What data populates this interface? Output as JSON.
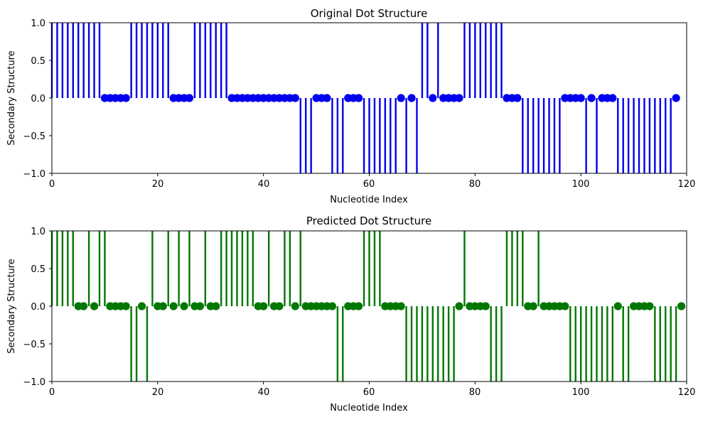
{
  "chart_data": [
    {
      "type": "stem",
      "title": "Original Dot Structure",
      "xlabel": "Nucleotide Index",
      "ylabel": "Secondary Structure",
      "xlim": [
        0,
        120
      ],
      "ylim": [
        -1,
        1
      ],
      "xticks": [
        "0",
        "20",
        "40",
        "60",
        "80",
        "100",
        "120"
      ],
      "yticks": [
        "1.0",
        "0.5",
        "0.0",
        "−0.5",
        "−1.0"
      ],
      "color": "#0000ee",
      "grid": false,
      "values": [
        1,
        1,
        1,
        1,
        1,
        1,
        1,
        1,
        1,
        1,
        0,
        0,
        0,
        0,
        0,
        1,
        1,
        1,
        1,
        1,
        1,
        1,
        1,
        0,
        0,
        0,
        0,
        1,
        1,
        1,
        1,
        1,
        1,
        1,
        0,
        0,
        0,
        0,
        0,
        0,
        0,
        0,
        0,
        0,
        0,
        0,
        0,
        -1,
        -1,
        -1,
        0,
        0,
        0,
        -1,
        -1,
        -1,
        0,
        0,
        0,
        -1,
        -1,
        -1,
        -1,
        -1,
        -1,
        -1,
        0,
        -1,
        0,
        -1,
        1,
        1,
        0,
        1,
        0,
        0,
        0,
        0,
        1,
        1,
        1,
        1,
        1,
        1,
        1,
        1,
        0,
        0,
        0,
        -1,
        -1,
        -1,
        -1,
        -1,
        -1,
        -1,
        -1,
        0,
        0,
        0,
        0,
        -1,
        0,
        -1,
        0,
        0,
        0,
        -1,
        -1,
        -1,
        -1,
        -1,
        -1,
        -1,
        -1,
        -1,
        -1,
        -1,
        0
      ]
    },
    {
      "type": "stem",
      "title": "Predicted Dot Structure",
      "xlabel": "Nucleotide Index",
      "ylabel": "Secondary Structure",
      "xlim": [
        0,
        120
      ],
      "ylim": [
        -1,
        1
      ],
      "xticks": [
        "0",
        "20",
        "40",
        "60",
        "80",
        "100",
        "120"
      ],
      "yticks": [
        "1.0",
        "0.5",
        "0.0",
        "−0.5",
        "−1.0"
      ],
      "color": "#007700",
      "grid": false,
      "values": [
        1,
        1,
        1,
        1,
        1,
        0,
        0,
        1,
        0,
        1,
        1,
        0,
        0,
        0,
        0,
        -1,
        -1,
        0,
        -1,
        1,
        0,
        0,
        1,
        0,
        1,
        0,
        1,
        0,
        0,
        1,
        0,
        0,
        1,
        1,
        1,
        1,
        1,
        1,
        1,
        0,
        0,
        1,
        0,
        0,
        1,
        1,
        0,
        1,
        0,
        0,
        0,
        0,
        0,
        0,
        -1,
        -1,
        0,
        0,
        0,
        1,
        1,
        1,
        1,
        0,
        0,
        0,
        0,
        -1,
        -1,
        -1,
        -1,
        -1,
        -1,
        -1,
        -1,
        -1,
        -1,
        0,
        1,
        0,
        0,
        0,
        0,
        -1,
        -1,
        -1,
        1,
        1,
        1,
        1,
        0,
        0,
        1,
        0,
        0,
        0,
        0,
        0,
        -1,
        -1,
        -1,
        -1,
        -1,
        -1,
        -1,
        -1,
        -1,
        0,
        -1,
        -1,
        0,
        0,
        0,
        0,
        -1,
        -1,
        -1,
        -1,
        -1,
        0
      ]
    }
  ]
}
